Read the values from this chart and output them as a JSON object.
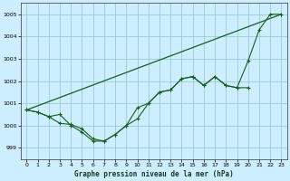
{
  "xlabel": "Graphe pression niveau de la mer (hPa)",
  "background_color": "#cceeff",
  "grid_color": "#99cccc",
  "line_color": "#1a5c1a",
  "xlim": [
    -0.5,
    23.5
  ],
  "ylim": [
    998.5,
    1005.5
  ],
  "yticks": [
    999,
    1000,
    1001,
    1002,
    1003,
    1004,
    1005
  ],
  "xticks": [
    0,
    1,
    2,
    3,
    4,
    5,
    6,
    7,
    8,
    9,
    10,
    11,
    12,
    13,
    14,
    15,
    16,
    17,
    18,
    19,
    20,
    21,
    22,
    23
  ],
  "series1_x": [
    0,
    23
  ],
  "series1_y": [
    1000.7,
    1005.0
  ],
  "series2_x": [
    0,
    1,
    2,
    3,
    4,
    5,
    6,
    7,
    8,
    9,
    10,
    11,
    12,
    13,
    14,
    15,
    16,
    17,
    18,
    19,
    20,
    21,
    22,
    23
  ],
  "series2_y": [
    1000.7,
    1000.6,
    1000.4,
    1000.5,
    1000.0,
    999.7,
    999.3,
    999.3,
    999.6,
    1000.0,
    1000.3,
    1001.0,
    1001.5,
    1001.6,
    1002.1,
    1002.2,
    1001.8,
    1002.2,
    1001.8,
    1001.7,
    1002.9,
    1004.3,
    1005.0,
    1005.0
  ],
  "series3_x": [
    0,
    1,
    2,
    3,
    4,
    5,
    6,
    7,
    8,
    9,
    10,
    11,
    12,
    13,
    14,
    15,
    16,
    17,
    18,
    19,
    20
  ],
  "series3_y": [
    1000.7,
    1000.6,
    1000.4,
    1000.1,
    1000.05,
    999.85,
    999.4,
    999.3,
    999.6,
    1000.0,
    1000.8,
    1001.0,
    1001.5,
    1001.6,
    1002.1,
    1002.2,
    1001.8,
    1002.2,
    1001.8,
    1001.7,
    1001.7
  ]
}
